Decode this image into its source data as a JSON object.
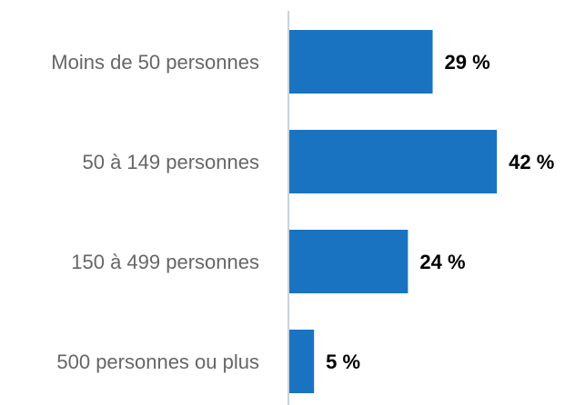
{
  "chart_data": {
    "type": "hbar",
    "categories": [
      "Moins de 50 personnes",
      "50 à 149 personnes",
      "150 à 499 personnes",
      "500 personnes ou plus"
    ],
    "values": [
      29,
      42,
      24,
      5
    ],
    "value_labels": [
      "29 %",
      "42 %",
      "24 %",
      "5 %"
    ],
    "color": "#1a73c1",
    "xlim": [
      0,
      50
    ]
  }
}
